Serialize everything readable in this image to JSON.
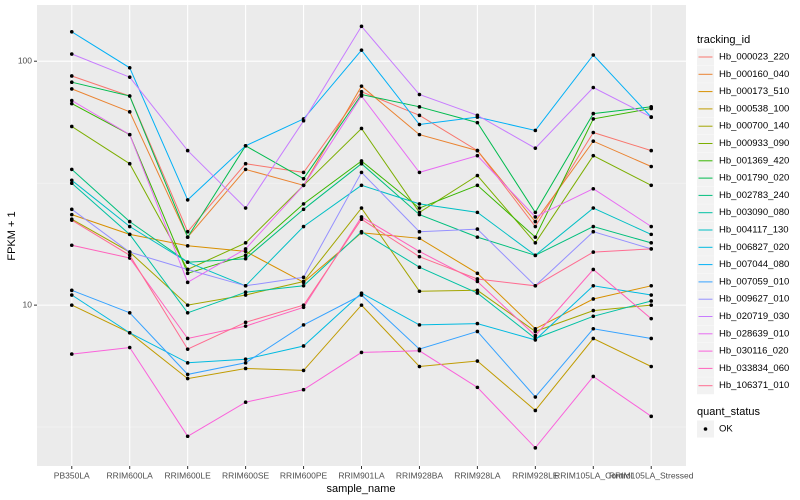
{
  "chart_data": {
    "type": "line",
    "x_label": "sample_name",
    "y_label": "FPKM + 1",
    "log_y": true,
    "grid": true,
    "categories": [
      "PB350LA",
      "RRIM600LA",
      "RRIM600LE",
      "RRIM600SE",
      "RRIM600PE",
      "RRIM901LA",
      "RRIM928BA",
      "RRIM928LA",
      "RRIM928LE",
      "RRIM105LA_Control",
      "RRIM105LA_Stressed"
    ],
    "ylim": [
      2.19,
      170
    ],
    "yticks": [
      10,
      100
    ],
    "legend_title": "tracking_id",
    "shape_legend": {
      "title": "quant_status",
      "labels": [
        "OK"
      ],
      "color": "#000000"
    },
    "series": [
      {
        "name": "Hb_000023_220",
        "color": "#F8766D",
        "values": [
          87,
          72,
          20,
          38,
          35,
          75,
          60,
          43,
          21,
          51,
          43
        ]
      },
      {
        "name": "Hb_000160_040",
        "color": "#EA8331",
        "values": [
          77,
          62,
          19,
          36,
          31,
          79,
          50,
          43,
          22,
          47,
          37
        ]
      },
      {
        "name": "Hb_000173_510",
        "color": "#D89000",
        "values": [
          23.5,
          19.5,
          17.5,
          16.6,
          12.4,
          19.8,
          18.8,
          13.5,
          8,
          10.6,
          12
        ]
      },
      {
        "name": "Hb_000538_100",
        "color": "#C09B00",
        "values": [
          10,
          7.7,
          5.0,
          5.5,
          5.4,
          10,
          5.6,
          5.9,
          3.7,
          7.3,
          5.6
        ]
      },
      {
        "name": "Hb_000700_140",
        "color": "#A3A500",
        "values": [
          22.5,
          16.5,
          10,
          11,
          12.5,
          25,
          11.4,
          11.5,
          7.8,
          9.5,
          10
        ]
      },
      {
        "name": "Hb_000933_090",
        "color": "#7CAE00",
        "values": [
          54,
          38,
          14,
          18,
          31,
          53,
          24,
          34,
          18,
          41,
          31
        ]
      },
      {
        "name": "Hb_001369_420",
        "color": "#39B600",
        "values": [
          67,
          50,
          13.5,
          16,
          26,
          39,
          25,
          31,
          19,
          58,
          64
        ]
      },
      {
        "name": "Hb_001790_020",
        "color": "#00BB4E",
        "values": [
          82,
          72,
          19,
          45,
          33,
          73,
          65,
          56,
          24,
          61,
          65
        ]
      },
      {
        "name": "Hb_002783_240",
        "color": "#00BF7D",
        "values": [
          36,
          22,
          15,
          15.5,
          24.7,
          38,
          23.5,
          19,
          16,
          21,
          18
        ]
      },
      {
        "name": "Hb_003090_080",
        "color": "#00C1A3",
        "values": [
          31.6,
          19.5,
          9.3,
          11.3,
          12,
          20,
          14.3,
          11.2,
          7.3,
          9,
          10.4
        ]
      },
      {
        "name": "Hb_004117_130",
        "color": "#00BFC4",
        "values": [
          32.5,
          21,
          15,
          12,
          21,
          31,
          26,
          24,
          16,
          25,
          19.5
        ]
      },
      {
        "name": "Hb_006827_020",
        "color": "#00BAE0",
        "values": [
          11,
          7.7,
          5.8,
          6,
          6.8,
          11.2,
          8.3,
          8.4,
          7.2,
          12,
          11
        ]
      },
      {
        "name": "Hb_007044_080",
        "color": "#00B0F6",
        "values": [
          132,
          94,
          27,
          45,
          58,
          111,
          55,
          59,
          52,
          106,
          59
        ]
      },
      {
        "name": "Hb_007059_010",
        "color": "#35A2FF",
        "values": [
          11.5,
          9.3,
          5.2,
          5.8,
          8.3,
          11,
          6.6,
          7.8,
          4.2,
          8,
          7.3
        ]
      },
      {
        "name": "Hb_009627_010",
        "color": "#9590FF",
        "values": [
          24.7,
          16.5,
          14,
          12,
          13,
          35,
          20,
          20.5,
          12,
          20,
          17
        ]
      },
      {
        "name": "Hb_020719_030",
        "color": "#C77CFF",
        "values": [
          107,
          86,
          43,
          25,
          57,
          139,
          73,
          60,
          44,
          78,
          59
        ]
      },
      {
        "name": "Hb_028639_010",
        "color": "#E76BF3",
        "values": [
          69,
          50,
          12.4,
          17,
          31,
          72,
          35,
          41,
          23,
          30,
          21
        ]
      },
      {
        "name": "Hb_030116_020",
        "color": "#FA62DB",
        "values": [
          6.3,
          6.7,
          2.9,
          4,
          4.5,
          6.4,
          6.5,
          4.6,
          2.6,
          5.1,
          3.5
        ]
      },
      {
        "name": "Hb_033834_060",
        "color": "#FF62BC",
        "values": [
          17.6,
          15.6,
          7.3,
          8.2,
          9.8,
          23,
          16.6,
          12.5,
          7.5,
          14,
          8.8
        ]
      },
      {
        "name": "Hb_106371_010",
        "color": "#FF6C91",
        "values": [
          22.3,
          16,
          6.6,
          8.5,
          10,
          22.5,
          15.8,
          12.8,
          12,
          16.5,
          17
        ]
      }
    ]
  }
}
